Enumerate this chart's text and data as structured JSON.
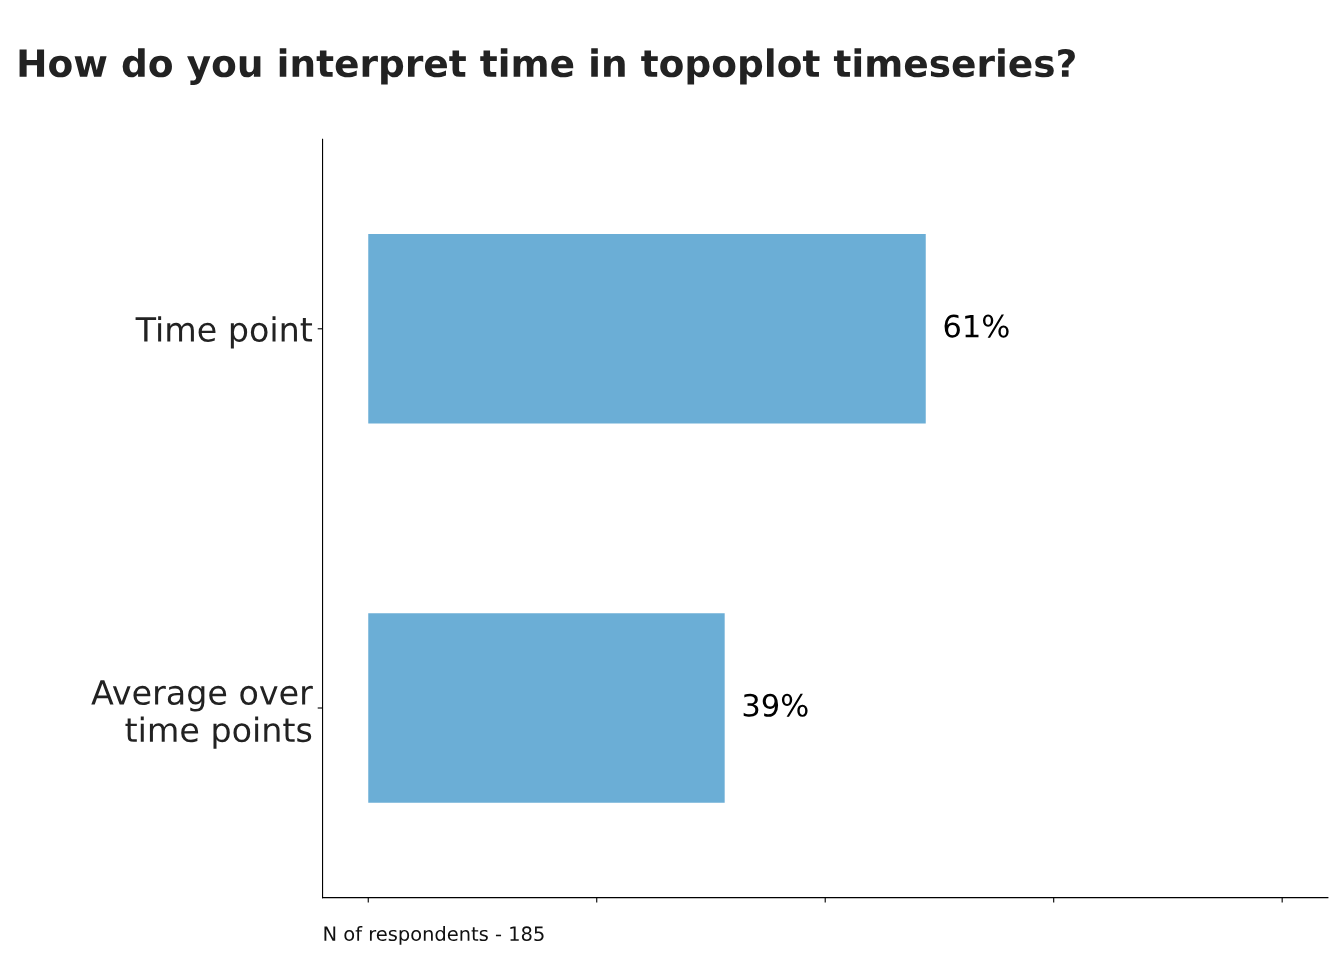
{
  "chart_data": {
    "type": "bar",
    "orientation": "horizontal",
    "title": "How do you interpret time in topoplot timeseries?",
    "categories": [
      "Time point",
      "Average over\ntime points"
    ],
    "values": [
      61,
      39
    ],
    "value_labels": [
      "61%",
      "39%"
    ],
    "color": "#6baed6",
    "xlim": [
      -5,
      105
    ],
    "xticks": [
      {
        "value": 0,
        "label": null
      },
      {
        "value": 25,
        "label": null
      },
      {
        "value": 50,
        "label": null
      },
      {
        "value": 75,
        "label": null
      },
      {
        "value": 100,
        "label": null
      }
    ],
    "tick_labels": "y",
    "grid": false,
    "legend": false,
    "annotations": [
      "N of respondents - 185"
    ]
  }
}
